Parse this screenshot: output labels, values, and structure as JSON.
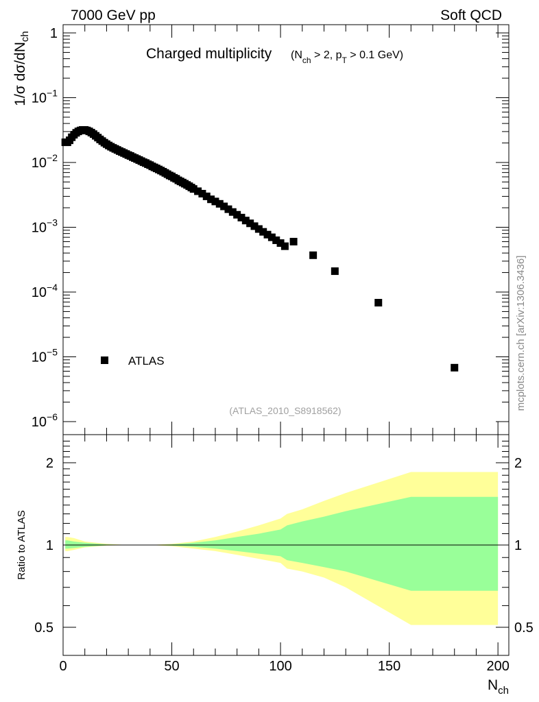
{
  "header": {
    "energy_label": "7000 GeV pp",
    "category_label": "Soft QCD"
  },
  "side_label": "mcplots.cern.ch [arXiv:1306.3436]",
  "colors": {
    "band_outer": "#ffff99",
    "band_inner": "#99ff99",
    "marker": "#000000",
    "analysis_label": "#a0a0a0"
  },
  "chart_data": [
    {
      "type": "scatter",
      "title_main": "Charged multiplicity",
      "title_cut": {
        "open": "(N",
        "nch_sub": "ch",
        "mid": " > 2, p",
        "pt_sub": "T",
        "close": " > 0.1 GeV)"
      },
      "analysis_label": "(ATLAS_2010_S8918562)",
      "ylabel": {
        "base": "1/σ dσ/dN",
        "sub": "ch"
      },
      "yscale": "log",
      "ylim": [
        5e-07,
        2
      ],
      "xlim": [
        0,
        205
      ],
      "ytick_labels": [
        {
          "value": 1,
          "label": "1"
        },
        {
          "value": 0.1,
          "base": "10",
          "exp": "−1"
        },
        {
          "value": 0.01,
          "base": "10",
          "exp": "−2"
        },
        {
          "value": 0.001,
          "base": "10",
          "exp": "−3"
        },
        {
          "value": 0.0001,
          "base": "10",
          "exp": "−4"
        },
        {
          "value": 1e-05,
          "base": "10",
          "exp": "−5"
        },
        {
          "value": 1e-06,
          "base": "10",
          "exp": "−6"
        }
      ],
      "legend": {
        "label": "ATLAS",
        "position": "lower-left"
      },
      "series": [
        {
          "name": "ATLAS",
          "x": [
            1,
            2,
            3,
            4,
            5,
            6,
            7,
            8,
            9,
            10,
            11,
            12,
            13,
            14,
            15,
            16,
            17,
            18,
            19,
            20,
            21,
            22,
            23,
            24,
            25,
            26,
            27,
            28,
            29,
            30,
            31,
            32,
            33,
            34,
            35,
            36,
            37,
            38,
            39,
            40,
            41,
            42,
            43,
            44,
            45,
            46,
            47,
            48,
            49,
            50,
            51,
            52,
            53,
            54,
            55,
            56,
            57,
            58,
            59,
            60,
            62,
            64,
            66,
            68,
            70,
            72,
            74,
            76,
            78,
            80,
            82,
            84,
            86,
            88,
            90,
            92,
            94,
            96,
            98,
            100,
            102,
            106,
            115,
            125,
            145,
            180
          ],
          "y": [
            0.0205,
            0.0205,
            0.022,
            0.0245,
            0.0268,
            0.0287,
            0.0302,
            0.0312,
            0.0318,
            0.0318,
            0.0312,
            0.0302,
            0.0289,
            0.0274,
            0.0258,
            0.0242,
            0.0227,
            0.0214,
            0.0202,
            0.0192,
            0.0183,
            0.0175,
            0.0168,
            0.0162,
            0.0156,
            0.015,
            0.0145,
            0.014,
            0.0135,
            0.013,
            0.0126,
            0.0121,
            0.0117,
            0.0113,
            0.0109,
            0.0105,
            0.0101,
            0.0098,
            0.0094,
            0.0091,
            0.0087,
            0.0084,
            0.0081,
            0.0078,
            0.0075,
            0.0072,
            0.0069,
            0.0066,
            0.0063,
            0.0061,
            0.0058,
            0.0056,
            0.0053,
            0.0051,
            0.0049,
            0.0047,
            0.0045,
            0.0043,
            0.0041,
            0.0039,
            0.0036,
            0.0033,
            0.003,
            0.0027,
            0.0025,
            0.0023,
            0.0021,
            0.0019,
            0.00172,
            0.00156,
            0.00141,
            0.00127,
            0.00115,
            0.00104,
            0.00094,
            0.00085,
            0.00077,
            0.0007,
            0.00063,
            0.00057,
            0.00051,
            0.0006,
            0.00037,
            0.00021,
            6.85e-05,
            6.8e-06
          ]
        }
      ]
    },
    {
      "type": "area",
      "ylabel": "Ratio to ATLAS",
      "xlabel": {
        "base": "N",
        "sub": "ch"
      },
      "xlim": [
        0,
        205
      ],
      "yscale": "log",
      "ylim": [
        0.42,
        2.5
      ],
      "xticks": [
        0,
        50,
        100,
        150,
        200
      ],
      "yticks": [
        0.5,
        1,
        2
      ],
      "reference_line": 1,
      "bands": [
        {
          "name": "outer",
          "x": [
            1,
            2,
            5,
            10,
            20,
            30,
            40,
            50,
            60,
            70,
            80,
            90,
            100,
            103,
            110,
            120,
            130,
            160,
            200
          ],
          "upper": [
            1.07,
            1.07,
            1.06,
            1.03,
            1.01,
            1.0,
            1.0,
            1.01,
            1.03,
            1.07,
            1.12,
            1.18,
            1.25,
            1.3,
            1.35,
            1.45,
            1.55,
            1.85,
            1.85
          ],
          "lower": [
            0.95,
            0.95,
            0.96,
            0.98,
            0.995,
            1.0,
            1.0,
            0.99,
            0.97,
            0.95,
            0.92,
            0.89,
            0.86,
            0.82,
            0.8,
            0.76,
            0.7,
            0.51,
            0.51
          ]
        },
        {
          "name": "inner",
          "x": [
            1,
            2,
            5,
            10,
            20,
            30,
            40,
            50,
            60,
            70,
            80,
            90,
            100,
            103,
            110,
            120,
            130,
            160,
            200
          ],
          "upper": [
            1.04,
            1.04,
            1.03,
            1.02,
            1.005,
            1.0,
            1.0,
            1.005,
            1.02,
            1.04,
            1.07,
            1.1,
            1.14,
            1.18,
            1.22,
            1.27,
            1.33,
            1.5,
            1.5
          ],
          "lower": [
            0.97,
            0.97,
            0.975,
            0.985,
            0.997,
            1.0,
            1.0,
            0.995,
            0.985,
            0.97,
            0.95,
            0.93,
            0.91,
            0.88,
            0.86,
            0.83,
            0.8,
            0.68,
            0.68
          ]
        }
      ]
    }
  ]
}
